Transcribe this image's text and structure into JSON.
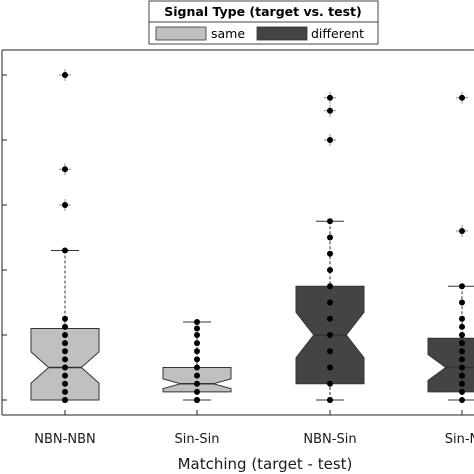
{
  "chart_data": {
    "type": "box",
    "xlabel": "Matching (target - test)",
    "categories": [
      "NBN-NBN",
      "Sin-Sin",
      "NBN-Sin",
      "Sin-N"
    ],
    "legend": {
      "title": "Signal Type (target vs. test)",
      "placement": "top-center",
      "entries": [
        {
          "label": "same",
          "color": "#c0c0c0"
        },
        {
          "label": "different",
          "color": "#444444"
        }
      ]
    },
    "ylim": [
      0,
      11
    ],
    "grid": false,
    "series": [
      {
        "category": "NBN-NBN",
        "signal": "same",
        "whisker_low": 0,
        "q1": 0,
        "median": 1,
        "q3": 2.2,
        "notch_low": 0.52,
        "notch_high": 1.48,
        "whisker_high": 4.6,
        "outliers": [
          6.0,
          7.1,
          10.0
        ],
        "points": [
          0,
          0,
          0.25,
          0.5,
          0.75,
          1,
          1.25,
          1.5,
          1.75,
          2,
          2.25,
          2.5,
          4.6
        ]
      },
      {
        "category": "Sin-Sin",
        "signal": "same",
        "whisker_low": 0,
        "q1": 0.25,
        "median": 0.5,
        "q3": 1,
        "notch_low": 0.35,
        "notch_high": 0.65,
        "whisker_high": 2.4,
        "outliers": [],
        "points": [
          0,
          0,
          0.25,
          0.5,
          0.75,
          1,
          1.25,
          1.5,
          1.75,
          2,
          2.2,
          2.4
        ]
      },
      {
        "category": "NBN-Sin",
        "signal": "different",
        "whisker_low": 0,
        "q1": 0.5,
        "median": 2,
        "q3": 3.5,
        "notch_low": 1.3,
        "notch_high": 2.7,
        "whisker_high": 5.5,
        "outliers": [
          8.0,
          8.9,
          9.3
        ],
        "points": [
          0,
          0,
          0.5,
          1,
          1.5,
          2,
          2.5,
          3,
          3.5,
          4,
          4.5,
          5,
          5.5
        ]
      },
      {
        "category": "Sin-N",
        "signal": "different",
        "whisker_low": 0,
        "q1": 0.25,
        "median": 1,
        "q3": 1.9,
        "notch_low": 0.6,
        "notch_high": 1.4,
        "whisker_high": 3.5,
        "outliers": [
          5.2,
          9.3
        ],
        "points": [
          0,
          0.25,
          0.5,
          0.75,
          1,
          1.25,
          1.5,
          1.75,
          2,
          2.25,
          2.5,
          3,
          3.5
        ]
      }
    ]
  }
}
